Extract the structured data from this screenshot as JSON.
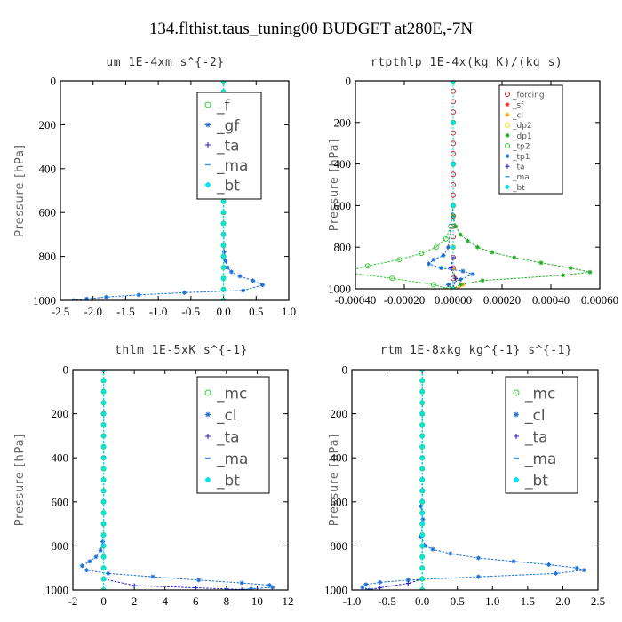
{
  "title": "134.flthist.taus_tuning00  BUDGET at280E,-7N",
  "chart_data": [
    {
      "type": "line",
      "title": "um   1E-4xm s^{-2}",
      "ylabel": "Pressure [hPa]",
      "xlim": [
        -2.5,
        1.0
      ],
      "ylim": [
        0,
        1000
      ],
      "y_inverted": true,
      "xticks": [
        "-2.5",
        "-2.0",
        "-1.5",
        "-1.0",
        "-0.5",
        "0.0",
        "0.5",
        "1.0"
      ],
      "yticks": [
        "0",
        "200",
        "400",
        "600",
        "800",
        "1000"
      ],
      "legend_location": "upper-right",
      "series": [
        {
          "name": "_f",
          "color": "#33cc33",
          "marker": "circle",
          "x": [
            0,
            0,
            0,
            0,
            0,
            0,
            0,
            0,
            0,
            0,
            0,
            0,
            0,
            0,
            0,
            0,
            0,
            0,
            0,
            0,
            0
          ],
          "y": [
            0,
            50,
            100,
            150,
            200,
            250,
            300,
            350,
            400,
            450,
            500,
            550,
            600,
            650,
            700,
            750,
            800,
            850,
            900,
            950,
            1000
          ]
        },
        {
          "name": "_gf",
          "color": "#1a6fd6",
          "marker": "star",
          "x": [
            0,
            0,
            0,
            0,
            0,
            0,
            0,
            0,
            0.01,
            0.03,
            0.06,
            0.12,
            0.25,
            0.45,
            0.6,
            0.3,
            -0.6,
            -1.3,
            -1.8,
            -2.1,
            -2.3
          ],
          "y": [
            0,
            100,
            200,
            300,
            400,
            500,
            600,
            700,
            780,
            820,
            850,
            870,
            890,
            910,
            930,
            955,
            965,
            975,
            985,
            993,
            1000
          ]
        },
        {
          "name": "_ta",
          "color": "#2222cc",
          "marker": "plus",
          "x": [
            0,
            0,
            0,
            0,
            0,
            0
          ],
          "y": [
            0,
            200,
            400,
            600,
            800,
            1000
          ]
        },
        {
          "name": "_ma",
          "color": "#3399ff",
          "marker": "dash",
          "x": [
            0,
            0,
            0,
            0,
            0,
            0
          ],
          "y": [
            0,
            200,
            400,
            600,
            800,
            1000
          ]
        },
        {
          "name": "_bt",
          "color": "#00e5ee",
          "marker": "diamond",
          "x": [
            0,
            0,
            0,
            0,
            0,
            0,
            0,
            0,
            0,
            0,
            0,
            0,
            0,
            0,
            0,
            0,
            0,
            0,
            0,
            0,
            0
          ],
          "y": [
            0,
            50,
            100,
            150,
            200,
            250,
            300,
            350,
            400,
            450,
            500,
            550,
            600,
            650,
            700,
            750,
            800,
            850,
            900,
            950,
            1000
          ]
        }
      ]
    },
    {
      "type": "line",
      "title": "rtpthlp   1E-4x(kg K)/(kg s)",
      "ylabel": "Pressure [hPa]",
      "xlim": [
        -0.0004,
        0.0006
      ],
      "ylim": [
        0,
        1000
      ],
      "y_inverted": true,
      "xticks": [
        "-0.00040",
        "-0.00020",
        "0.00000",
        "0.00020",
        "0.00040",
        "0.00060"
      ],
      "yticks": [
        "0",
        "200",
        "400",
        "600",
        "800",
        "1000"
      ],
      "legend_location": "upper-right",
      "series": [
        {
          "name": "_forcing",
          "color": "#e02020",
          "marker": "circle",
          "x": [
            0,
            0,
            0,
            0,
            0,
            0,
            0,
            0,
            0,
            0,
            0,
            0,
            0,
            0,
            0,
            0,
            0,
            0,
            0,
            0,
            0
          ],
          "y": [
            0,
            50,
            100,
            150,
            200,
            250,
            300,
            350,
            400,
            450,
            500,
            550,
            600,
            650,
            700,
            750,
            800,
            850,
            900,
            950,
            1000
          ]
        },
        {
          "name": "_sf",
          "color": "#ff3030",
          "marker": "star",
          "x": [
            0,
            0,
            0,
            0,
            0,
            0
          ],
          "y": [
            0,
            200,
            400,
            600,
            800,
            1000
          ]
        },
        {
          "name": "_cl",
          "color": "#ffa500",
          "marker": "star",
          "x": [
            0,
            0,
            0,
            0,
            0,
            0,
            1e-05,
            4e-05,
            2e-05
          ],
          "y": [
            0,
            200,
            400,
            600,
            800,
            900,
            950,
            980,
            1000
          ]
        },
        {
          "name": "_dp2",
          "color": "#ffd700",
          "marker": "circle",
          "x": [
            0,
            0,
            0,
            0,
            0,
            0
          ],
          "y": [
            0,
            200,
            400,
            600,
            800,
            1000
          ]
        },
        {
          "name": "_dp1",
          "color": "#22aa22",
          "marker": "star",
          "x": [
            0,
            0,
            0,
            0,
            0,
            1e-05,
            3e-05,
            6e-05,
            0.0001,
            0.00016,
            0.00025,
            0.00036,
            0.00048,
            0.00056,
            0.00045,
            0.00012,
            3e-05,
            0
          ],
          "y": [
            0,
            200,
            400,
            600,
            650,
            700,
            740,
            770,
            800,
            825,
            850,
            875,
            900,
            920,
            935,
            960,
            980,
            1000
          ]
        },
        {
          "name": "_tp2",
          "color": "#33cc33",
          "marker": "circle",
          "x": [
            0,
            0,
            0,
            0,
            -1e-05,
            -3e-05,
            -7e-05,
            -0.00013,
            -0.00022,
            -0.00035,
            -0.00045,
            -0.00025,
            -8e-05,
            -2e-05
          ],
          "y": [
            0,
            200,
            400,
            600,
            700,
            760,
            800,
            830,
            860,
            890,
            920,
            950,
            980,
            1000
          ]
        },
        {
          "name": "_tp1",
          "color": "#1a6fd6",
          "marker": "star",
          "x": [
            0,
            0,
            0,
            0,
            -2e-05,
            -4e-05,
            -8e-05,
            -0.0001,
            -5e-05,
            4e-05,
            8e-05,
            3e-05,
            -2e-05,
            0
          ],
          "y": [
            0,
            200,
            400,
            600,
            800,
            840,
            860,
            880,
            900,
            915,
            930,
            955,
            980,
            1000
          ]
        },
        {
          "name": "_ta",
          "color": "#2222cc",
          "marker": "plus",
          "x": [
            0,
            0,
            0,
            0,
            0,
            0,
            -1e-05,
            1e-05,
            0
          ],
          "y": [
            0,
            200,
            400,
            600,
            800,
            850,
            900,
            950,
            1000
          ]
        },
        {
          "name": "_ma",
          "color": "#3399ff",
          "marker": "dash",
          "x": [
            0,
            0,
            0,
            0,
            0,
            0
          ],
          "y": [
            0,
            200,
            400,
            600,
            800,
            1000
          ]
        },
        {
          "name": "_bt",
          "color": "#00e5ee",
          "marker": "diamond",
          "x": [
            0,
            0,
            0,
            0,
            0,
            0
          ],
          "y": [
            0,
            200,
            400,
            600,
            800,
            1000
          ]
        }
      ]
    },
    {
      "type": "line",
      "title": "thlm   1E-5xK s^{-1}",
      "ylabel": "Pressure [hPa]",
      "xlim": [
        -2,
        12
      ],
      "ylim": [
        0,
        1000
      ],
      "y_inverted": true,
      "xticks": [
        "-2",
        "0",
        "2",
        "4",
        "6",
        "8",
        "10",
        "12"
      ],
      "yticks": [
        "0",
        "200",
        "400",
        "600",
        "800",
        "1000"
      ],
      "legend_location": "upper-right",
      "series": [
        {
          "name": "_mc",
          "color": "#33cc33",
          "marker": "circle",
          "x": [
            0,
            0,
            0,
            0,
            0,
            0,
            0,
            0,
            0,
            0,
            0,
            0,
            0,
            0,
            0,
            0,
            0,
            0,
            0,
            0,
            0
          ],
          "y": [
            0,
            50,
            100,
            150,
            200,
            250,
            300,
            350,
            400,
            450,
            500,
            550,
            600,
            650,
            700,
            750,
            800,
            850,
            900,
            950,
            1000
          ]
        },
        {
          "name": "_cl",
          "color": "#1a6fd6",
          "marker": "star",
          "x": [
            0,
            0,
            0,
            0,
            0,
            -0.05,
            -0.2,
            -0.5,
            -0.9,
            -1.4,
            -1.1,
            0.3,
            3.2,
            6.2,
            9.0,
            10.8,
            11.0,
            9.6,
            8.0
          ],
          "y": [
            0,
            200,
            400,
            600,
            700,
            780,
            820,
            850,
            870,
            890,
            910,
            925,
            940,
            955,
            968,
            978,
            988,
            995,
            1000
          ]
        },
        {
          "name": "_ta",
          "color": "#2222cc",
          "marker": "plus",
          "x": [
            0,
            0,
            0,
            0,
            0,
            0,
            2,
            6,
            9,
            10
          ],
          "y": [
            0,
            200,
            400,
            600,
            800,
            950,
            980,
            990,
            998,
            1000
          ]
        },
        {
          "name": "_ma",
          "color": "#3399ff",
          "marker": "dash",
          "x": [
            0,
            0,
            0,
            0,
            0,
            0
          ],
          "y": [
            0,
            200,
            400,
            600,
            800,
            1000
          ]
        },
        {
          "name": "_bt",
          "color": "#00e5ee",
          "marker": "diamond",
          "x": [
            0,
            0,
            0,
            0,
            0,
            0,
            0,
            0,
            0,
            0,
            0,
            0,
            0,
            0,
            0,
            0,
            0,
            0,
            0,
            0,
            0
          ],
          "y": [
            0,
            50,
            100,
            150,
            200,
            250,
            300,
            350,
            400,
            450,
            500,
            550,
            600,
            650,
            700,
            750,
            800,
            850,
            900,
            950,
            1000
          ]
        }
      ]
    },
    {
      "type": "line",
      "title": "rtm   1E-8xkg kg^{-1} s^{-1}",
      "ylabel": "Pressure [hPa]",
      "xlim": [
        -1.0,
        2.5
      ],
      "ylim": [
        0,
        1000
      ],
      "y_inverted": true,
      "xticks": [
        "-1.0",
        "-0.5",
        "0.0",
        "0.5",
        "1.0",
        "1.5",
        "2.0",
        "2.5"
      ],
      "yticks": [
        "0",
        "200",
        "400",
        "600",
        "800",
        "1000"
      ],
      "legend_location": "upper-right",
      "series": [
        {
          "name": "_mc",
          "color": "#33cc33",
          "marker": "circle",
          "x": [
            0,
            0,
            0,
            0,
            0,
            0,
            0,
            0,
            0,
            0,
            0,
            0,
            0,
            0,
            0,
            0,
            0,
            0,
            0,
            0,
            0
          ],
          "y": [
            0,
            50,
            100,
            150,
            200,
            250,
            300,
            350,
            400,
            450,
            500,
            550,
            600,
            650,
            700,
            750,
            800,
            850,
            900,
            950,
            1000
          ]
        },
        {
          "name": "_cl",
          "color": "#1a6fd6",
          "marker": "star",
          "x": [
            0,
            0,
            0,
            0,
            0.01,
            -0.02,
            0.01,
            -0.02,
            0.05,
            0.15,
            0.4,
            0.8,
            1.3,
            1.8,
            2.2,
            2.3,
            1.9,
            0.8,
            -0.2,
            -0.6,
            -0.8,
            -0.85,
            -0.75
          ],
          "y": [
            0,
            200,
            400,
            500,
            550,
            620,
            680,
            760,
            800,
            815,
            835,
            855,
            870,
            885,
            900,
            910,
            925,
            940,
            955,
            965,
            975,
            988,
            1000
          ]
        },
        {
          "name": "_ta",
          "color": "#2222cc",
          "marker": "plus",
          "x": [
            0,
            0,
            0,
            0,
            0,
            0,
            -0.2,
            -0.6,
            -0.8
          ],
          "y": [
            0,
            200,
            400,
            600,
            800,
            950,
            970,
            990,
            1000
          ]
        },
        {
          "name": "_ma",
          "color": "#3399ff",
          "marker": "dash",
          "x": [
            0,
            0,
            0,
            0,
            0,
            0
          ],
          "y": [
            0,
            200,
            400,
            600,
            800,
            1000
          ]
        },
        {
          "name": "_bt",
          "color": "#00e5ee",
          "marker": "diamond",
          "x": [
            0,
            0,
            0,
            0,
            0,
            0,
            0,
            0,
            0,
            0,
            0,
            0,
            0,
            0,
            0,
            0,
            0,
            0,
            0,
            0,
            0
          ],
          "y": [
            0,
            50,
            100,
            150,
            200,
            250,
            300,
            350,
            400,
            450,
            500,
            550,
            600,
            650,
            700,
            750,
            800,
            850,
            900,
            950,
            1000
          ]
        }
      ]
    }
  ]
}
